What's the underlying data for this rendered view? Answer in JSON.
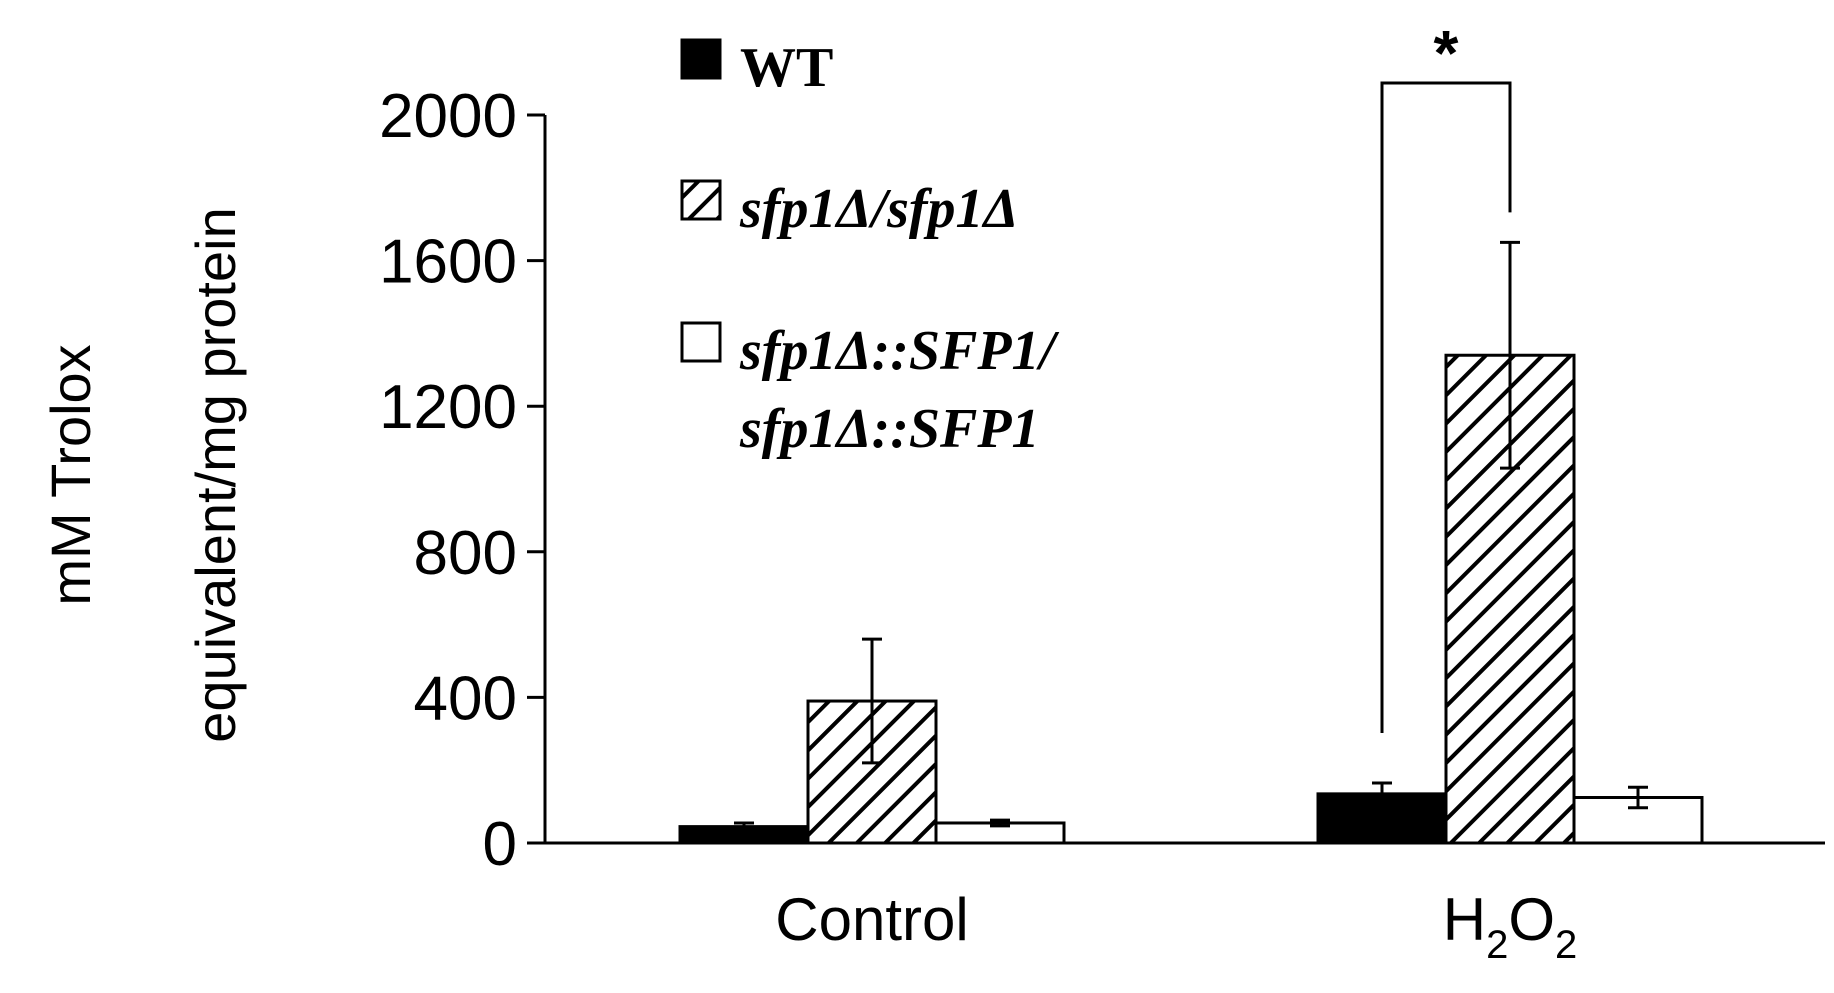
{
  "chart_data": {
    "type": "bar",
    "categories": [
      "Control",
      "H2O2"
    ],
    "category_labels": [
      {
        "main": "Control",
        "parts": []
      },
      {
        "main": "",
        "parts": [
          {
            "text": "H",
            "sub": false
          },
          {
            "text": "2",
            "sub": true
          },
          {
            "text": "O",
            "sub": false
          },
          {
            "text": "2",
            "sub": true
          }
        ]
      }
    ],
    "ylabel_lines": [
      "mM Trolox",
      "equivalent/mg protein"
    ],
    "ylim": [
      0,
      2000
    ],
    "yticks": [
      "0",
      "400",
      "800",
      "1200",
      "1600",
      "2000"
    ],
    "series": [
      {
        "name": "WT",
        "values": [
          45,
          135
        ],
        "errors": [
          10,
          30
        ],
        "fill": "solid",
        "italic": false
      },
      {
        "name": "sfp1Δ/sfp1Δ",
        "values": [
          390,
          1340
        ],
        "errors": [
          170,
          310
        ],
        "fill": "hatch",
        "italic": true
      },
      {
        "name": "sfp1Δ::SFP1/ sfp1Δ::SFP1",
        "values": [
          55,
          125
        ],
        "errors": [
          8,
          28
        ],
        "fill": "open",
        "italic": true
      }
    ],
    "legend_lines": [
      [
        "WT"
      ],
      [
        "sfp1Δ/sfp1Δ"
      ],
      [
        "sfp1Δ::SFP1/",
        "sfp1Δ::SFP1"
      ]
    ],
    "annotation": {
      "text": "*",
      "between_series": [
        0,
        1
      ],
      "category": 1
    },
    "grid": false,
    "legend_position": "top-left"
  },
  "colors": {
    "solid": "#000000",
    "outline": "#000000",
    "background": "#ffffff"
  }
}
